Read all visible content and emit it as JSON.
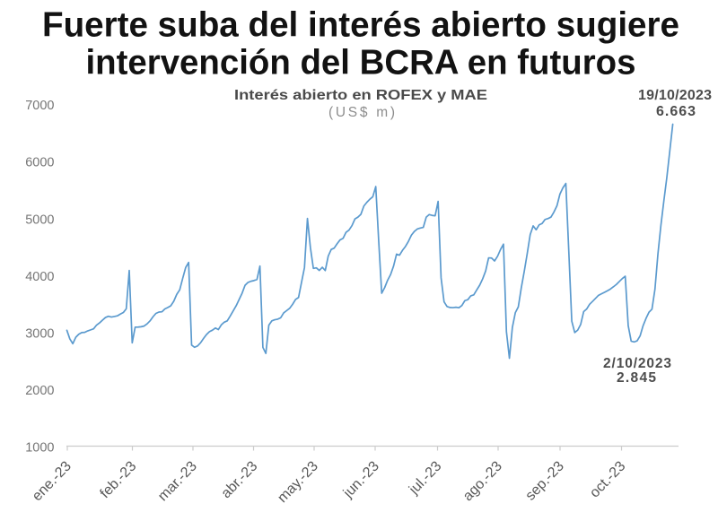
{
  "title": {
    "line1": "Fuerte suba del interés abierto sugiere",
    "line2": "intervención del BCRA en futuros"
  },
  "subtitle": {
    "line1": "Interés abierto en ROFEX y MAE",
    "line2": "(US$ m)"
  },
  "annotations": {
    "max_point": {
      "date": "19/10/2023",
      "value_label": "6.663",
      "value": 6663
    },
    "min_point": {
      "date": "2/10/2023",
      "value_label": "2.845",
      "value": 2845
    }
  },
  "colors": {
    "line": "#5b9ace",
    "title": "#121212",
    "subtitle_bold": "#4a4a4a",
    "subtitle_light": "#8d8d8d",
    "axis": "#cccccc",
    "y_tick_label": "#757575",
    "x_tick_label": "#585858",
    "annotation": "#4d4d4d",
    "background": "#ffffff"
  },
  "chart_data": {
    "type": "line",
    "title": "Interés abierto en ROFEX y MAE",
    "subtitle": "(US$ m)",
    "xlabel": "",
    "ylabel": "",
    "x_tick_labels": [
      "ene.-23",
      "feb.-23",
      "mar.-23",
      "abr.-23",
      "may.-23",
      "jun.-23",
      "jul.-23",
      "ago.-23",
      "sep.-23",
      "oct.-23"
    ],
    "y_ticks": [
      1000,
      2000,
      3000,
      4000,
      5000,
      6000,
      7000
    ],
    "ylim": [
      1000,
      7000
    ],
    "grid": false,
    "legend": false,
    "series": [
      {
        "name": "Interés abierto ROFEX y MAE (US$ m)",
        "values": [
          3050,
          2899,
          2815,
          2927,
          2980,
          3010,
          3014,
          3039,
          3057,
          3076,
          3141,
          3179,
          3228,
          3274,
          3296,
          3282,
          3292,
          3303,
          3334,
          3361,
          3427,
          4100,
          2830,
          3105,
          3106,
          3112,
          3124,
          3162,
          3215,
          3287,
          3346,
          3369,
          3374,
          3425,
          3450,
          3480,
          3560,
          3680,
          3760,
          3960,
          4150,
          4240,
          2790,
          2752,
          2775,
          2830,
          2905,
          2975,
          3025,
          3052,
          3090,
          3062,
          3145,
          3192,
          3215,
          3300,
          3390,
          3480,
          3590,
          3700,
          3840,
          3890,
          3910,
          3922,
          3940,
          4176,
          2750,
          2645,
          3140,
          3215,
          3235,
          3245,
          3270,
          3355,
          3395,
          3435,
          3505,
          3590,
          3625,
          3890,
          4150,
          5010,
          4500,
          4135,
          4145,
          4099,
          4155,
          4097,
          4351,
          4467,
          4491,
          4568,
          4636,
          4662,
          4768,
          4807,
          4886,
          5003,
          5034,
          5084,
          5229,
          5294,
          5348,
          5391,
          5570,
          4609,
          3700,
          3798,
          3928,
          4028,
          4176,
          4385,
          4367,
          4452,
          4520,
          4609,
          4718,
          4784,
          4826,
          4842,
          4854,
          5034,
          5079,
          5064,
          5058,
          5310,
          3968,
          3549,
          3466,
          3450,
          3447,
          3454,
          3445,
          3485,
          3570,
          3587,
          3654,
          3672,
          3758,
          3841,
          3952,
          4090,
          4320,
          4317,
          4266,
          4347,
          4465,
          4560,
          3025,
          2560,
          3101,
          3360,
          3461,
          3795,
          4083,
          4395,
          4728,
          4880,
          4812,
          4898,
          4922,
          4993,
          5009,
          5035,
          5124,
          5232,
          5437,
          5547,
          5625,
          4427,
          3209,
          3010,
          3053,
          3154,
          3377,
          3422,
          3506,
          3557,
          3610,
          3663,
          3690,
          3715,
          3743,
          3773,
          3812,
          3853,
          3905,
          3956,
          3998,
          3131,
          2859,
          2845,
          2865,
          2951,
          3129,
          3259,
          3368,
          3420,
          3768,
          4385,
          4887,
          5318,
          5729,
          6195,
          6663
        ]
      }
    ],
    "annotations": [
      {
        "text": "19/10/2023 6.663",
        "point_index": 204,
        "value": 6663
      },
      {
        "text": "2/10/2023 2.845",
        "point_index": 191,
        "value": 2845
      }
    ]
  }
}
